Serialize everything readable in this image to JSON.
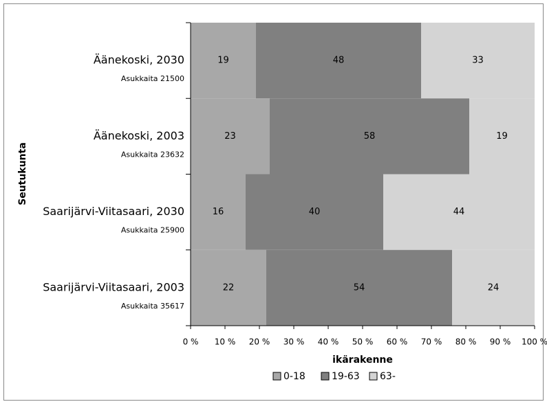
{
  "chart_data": {
    "type": "stacked_bar_horizontal",
    "categories": [
      "Äänekoski, 2030",
      "Äänekoski, 2003",
      "Saarijärvi-Viitasaari, 2030",
      "Saarijärvi-Viitasaari, 2003"
    ],
    "category_sublabels": [
      "Asukkaita 21500",
      "Asukkaita 23632",
      "Asukkaita 25900",
      "Asukkaita 35617"
    ],
    "series": [
      {
        "name": "0-18",
        "color": "#a8a8a8",
        "values": [
          19,
          23,
          16,
          22
        ]
      },
      {
        "name": "19-63",
        "color": "#808080",
        "values": [
          48,
          58,
          40,
          54
        ]
      },
      {
        "name": "63-",
        "color": "#d4d4d4",
        "values": [
          33,
          19,
          44,
          24
        ]
      }
    ],
    "xlim": [
      0,
      100
    ],
    "xticks": [
      {
        "value": 0,
        "label": "0 %"
      },
      {
        "value": 10,
        "label": "10 %"
      },
      {
        "value": 20,
        "label": "20 %"
      },
      {
        "value": 30,
        "label": "30 %"
      },
      {
        "value": 40,
        "label": "40 %"
      },
      {
        "value": 50,
        "label": "50 %"
      },
      {
        "value": 60,
        "label": "60 %"
      },
      {
        "value": 70,
        "label": "70 %"
      },
      {
        "value": 80,
        "label": "80 %"
      },
      {
        "value": 90,
        "label": "90 %"
      },
      {
        "value": 100,
        "label": "100 %"
      }
    ],
    "x_label": "ikärakenne",
    "y_label": "Seutukunta",
    "legend": "bottom"
  }
}
